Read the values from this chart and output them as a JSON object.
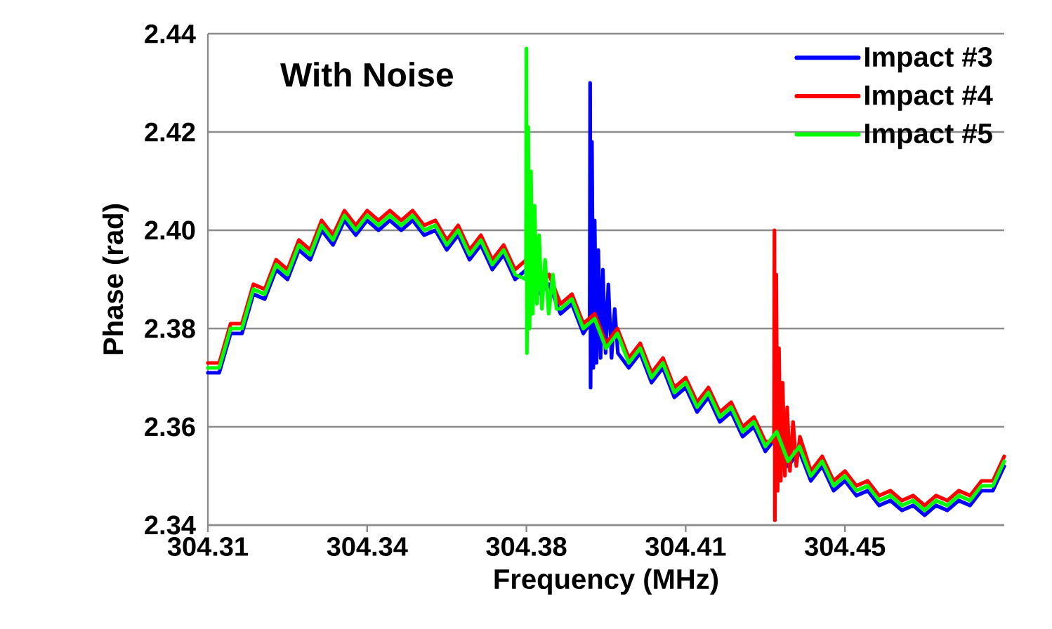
{
  "chart_data": {
    "type": "line",
    "title": "With Noise",
    "xlabel": "Frequency (MHz)",
    "ylabel": "Phase (rad)",
    "xlim": [
      304.31,
      304.485
    ],
    "ylim": [
      2.34,
      2.44
    ],
    "xticks": [
      304.31,
      {
        "value": 304.345,
        "label": "304.34"
      },
      304.38,
      {
        "value": 304.415,
        "label": "304.41"
      },
      304.45
    ],
    "yticks": [
      {
        "value": 2.34,
        "label": "2.34"
      },
      {
        "value": 2.36,
        "label": "2.36"
      },
      {
        "value": 2.38,
        "label": "2.38"
      },
      {
        "value": 2.4,
        "label": "2.40"
      },
      {
        "value": 2.42,
        "label": "2.42"
      },
      {
        "value": 2.44,
        "label": "2.44"
      }
    ],
    "grid": "y",
    "legend": "top right",
    "marker": "none",
    "line_style": "solid",
    "series": [
      {
        "name": "Impact #3",
        "color": "#0000ff",
        "x": [
          304.31,
          304.3125,
          304.315,
          304.3175,
          304.32,
          304.3225,
          304.325,
          304.3275,
          304.33,
          304.3325,
          304.335,
          304.3375,
          304.34,
          304.3425,
          304.345,
          304.3475,
          304.35,
          304.3525,
          304.355,
          304.3575,
          304.36,
          304.3625,
          304.365,
          304.3675,
          304.37,
          304.3725,
          304.375,
          304.3775,
          304.38,
          304.3825,
          304.385,
          304.3875,
          304.39,
          304.3925,
          304.3939,
          304.394,
          304.3941,
          304.3944,
          304.3947,
          304.395,
          304.3954,
          304.3958,
          304.3963,
          304.3968,
          304.3974,
          304.398,
          304.3987,
          304.3994,
          304.4001,
          304.4025,
          304.405,
          304.4075,
          304.41,
          304.4125,
          304.415,
          304.4175,
          304.42,
          304.4225,
          304.425,
          304.4275,
          304.43,
          304.4325,
          304.435,
          304.4375,
          304.44,
          304.4425,
          304.445,
          304.4475,
          304.45,
          304.4525,
          304.455,
          304.4575,
          304.46,
          304.4625,
          304.465,
          304.4675,
          304.47,
          304.4725,
          304.475,
          304.4775,
          304.48,
          304.4825,
          304.485
        ],
        "values": [
          2.371,
          2.371,
          2.379,
          2.379,
          2.387,
          2.386,
          2.392,
          2.39,
          2.396,
          2.394,
          2.4,
          2.397,
          2.402,
          2.399,
          2.402,
          2.4,
          2.402,
          2.4,
          2.402,
          2.399,
          2.4,
          2.396,
          2.399,
          2.394,
          2.397,
          2.392,
          2.395,
          2.39,
          2.392,
          2.387,
          2.389,
          2.383,
          2.385,
          2.379,
          2.381,
          2.43,
          2.368,
          2.418,
          2.372,
          2.402,
          2.373,
          2.396,
          2.374,
          2.392,
          2.375,
          2.389,
          2.374,
          2.384,
          2.375,
          2.372,
          2.375,
          2.369,
          2.372,
          2.366,
          2.368,
          2.363,
          2.366,
          2.361,
          2.363,
          2.358,
          2.36,
          2.355,
          2.358,
          2.352,
          2.355,
          2.349,
          2.352,
          2.347,
          2.349,
          2.346,
          2.347,
          2.344,
          2.345,
          2.343,
          2.344,
          2.342,
          2.344,
          2.343,
          2.345,
          2.344,
          2.347,
          2.347,
          2.352
        ]
      },
      {
        "name": "Impact #4",
        "color": "#ff0000",
        "x": [
          304.31,
          304.3125,
          304.315,
          304.3175,
          304.32,
          304.3225,
          304.325,
          304.3275,
          304.33,
          304.3325,
          304.335,
          304.3375,
          304.34,
          304.3425,
          304.345,
          304.3475,
          304.35,
          304.3525,
          304.355,
          304.3575,
          304.36,
          304.3625,
          304.365,
          304.3675,
          304.37,
          304.3725,
          304.375,
          304.3775,
          304.38,
          304.3825,
          304.385,
          304.3875,
          304.39,
          304.3925,
          304.395,
          304.3975,
          304.4,
          304.4025,
          304.405,
          304.4075,
          304.41,
          304.4125,
          304.415,
          304.4175,
          304.42,
          304.4225,
          304.425,
          304.4275,
          304.43,
          304.4325,
          304.4344,
          304.4345,
          304.4346,
          304.4349,
          304.4352,
          304.4355,
          304.4359,
          304.4363,
          304.4368,
          304.4373,
          304.4379,
          304.4386,
          304.4393,
          304.4401,
          304.4425,
          304.445,
          304.4475,
          304.45,
          304.4525,
          304.455,
          304.4575,
          304.46,
          304.4625,
          304.465,
          304.4675,
          304.47,
          304.4725,
          304.475,
          304.4775,
          304.48,
          304.4825,
          304.485
        ],
        "values": [
          2.373,
          2.373,
          2.381,
          2.381,
          2.389,
          2.388,
          2.394,
          2.392,
          2.398,
          2.396,
          2.402,
          2.399,
          2.404,
          2.401,
          2.404,
          2.402,
          2.404,
          2.402,
          2.404,
          2.401,
          2.402,
          2.398,
          2.401,
          2.396,
          2.399,
          2.394,
          2.397,
          2.392,
          2.394,
          2.389,
          2.391,
          2.385,
          2.387,
          2.381,
          2.383,
          2.377,
          2.38,
          2.374,
          2.377,
          2.371,
          2.374,
          2.368,
          2.37,
          2.365,
          2.368,
          2.363,
          2.365,
          2.36,
          2.362,
          2.357,
          2.357,
          2.4,
          2.341,
          2.391,
          2.347,
          2.376,
          2.349,
          2.369,
          2.35,
          2.364,
          2.351,
          2.361,
          2.352,
          2.358,
          2.351,
          2.354,
          2.349,
          2.351,
          2.348,
          2.349,
          2.346,
          2.347,
          2.345,
          2.346,
          2.344,
          2.346,
          2.345,
          2.347,
          2.346,
          2.349,
          2.349,
          2.354
        ]
      },
      {
        "name": "Impact #5",
        "color": "#00ff00",
        "x": [
          304.31,
          304.3125,
          304.315,
          304.3175,
          304.32,
          304.3225,
          304.325,
          304.3275,
          304.33,
          304.3325,
          304.335,
          304.3375,
          304.34,
          304.3425,
          304.345,
          304.3475,
          304.35,
          304.3525,
          304.355,
          304.3575,
          304.36,
          304.3625,
          304.365,
          304.3675,
          304.37,
          304.3725,
          304.375,
          304.3775,
          304.3799,
          304.38,
          304.3801,
          304.3804,
          304.3807,
          304.381,
          304.3814,
          304.3818,
          304.3823,
          304.3828,
          304.3834,
          304.3841,
          304.3849,
          304.3858,
          304.3866,
          304.3875,
          304.39,
          304.3925,
          304.395,
          304.3975,
          304.4,
          304.4025,
          304.405,
          304.4075,
          304.41,
          304.4125,
          304.415,
          304.4175,
          304.42,
          304.4225,
          304.425,
          304.4275,
          304.43,
          304.4325,
          304.435,
          304.4375,
          304.44,
          304.4425,
          304.445,
          304.4475,
          304.45,
          304.4525,
          304.455,
          304.4575,
          304.46,
          304.4625,
          304.465,
          304.4675,
          304.47,
          304.4725,
          304.475,
          304.4775,
          304.48,
          304.4825,
          304.485
        ],
        "values": [
          2.372,
          2.372,
          2.38,
          2.38,
          2.388,
          2.387,
          2.393,
          2.391,
          2.397,
          2.395,
          2.401,
          2.398,
          2.403,
          2.4,
          2.403,
          2.401,
          2.403,
          2.401,
          2.403,
          2.4,
          2.401,
          2.397,
          2.4,
          2.395,
          2.398,
          2.393,
          2.396,
          2.391,
          2.39,
          2.437,
          2.375,
          2.421,
          2.38,
          2.412,
          2.383,
          2.405,
          2.385,
          2.399,
          2.384,
          2.394,
          2.383,
          2.391,
          2.384,
          2.384,
          2.386,
          2.38,
          2.382,
          2.376,
          2.379,
          2.373,
          2.376,
          2.37,
          2.373,
          2.367,
          2.369,
          2.364,
          2.367,
          2.362,
          2.364,
          2.359,
          2.361,
          2.356,
          2.359,
          2.353,
          2.356,
          2.35,
          2.353,
          2.348,
          2.35,
          2.347,
          2.348,
          2.345,
          2.346,
          2.344,
          2.345,
          2.343,
          2.345,
          2.344,
          2.346,
          2.345,
          2.348,
          2.348,
          2.353
        ]
      }
    ]
  }
}
